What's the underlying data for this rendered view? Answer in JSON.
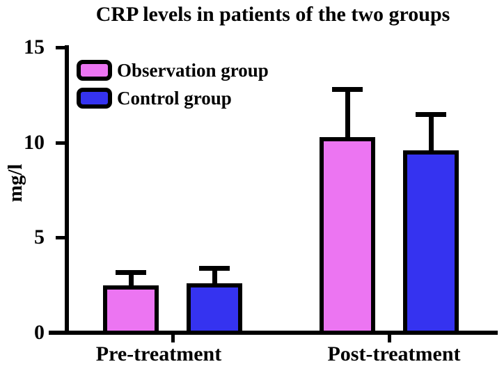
{
  "chart_data": {
    "type": "bar",
    "title": "CRP levels in patients of the two groups",
    "ylabel": "mg/l",
    "xlabel": "",
    "ylim": [
      0,
      15
    ],
    "yticks": [
      0,
      5,
      10,
      15
    ],
    "categories": [
      "Pre-treatment",
      "Post-treatment"
    ],
    "series": [
      {
        "name": "Observation group",
        "color": "#EC75F2",
        "values": [
          2.5,
          10.3
        ],
        "error_plus": [
          0.8,
          2.6
        ]
      },
      {
        "name": "Control group",
        "color": "#3533F0",
        "values": [
          2.6,
          9.6
        ],
        "error_plus": [
          0.9,
          2.0
        ]
      }
    ],
    "legend": {
      "position": "top-left",
      "entries": [
        "Observation group",
        "Control group"
      ]
    },
    "grid": false,
    "axis_color": "#000000",
    "error_bar_color": "#000000"
  }
}
